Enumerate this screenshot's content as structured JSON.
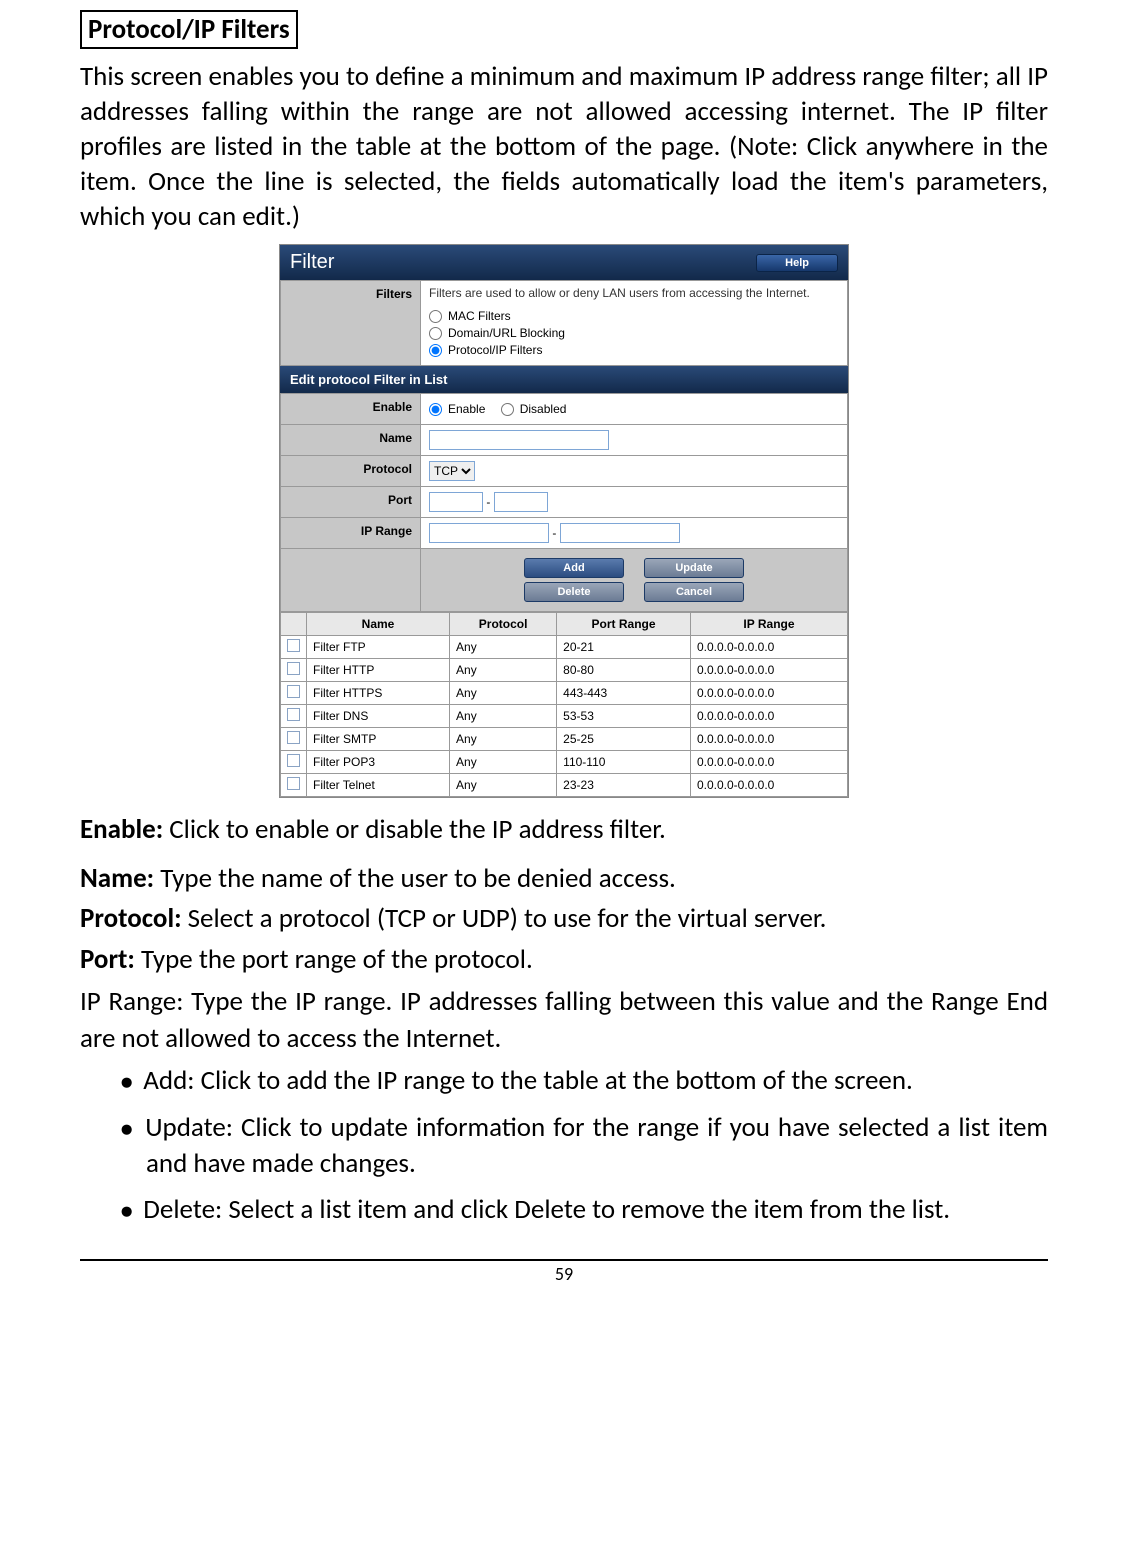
{
  "header": {
    "title": "Protocol/IP Filters",
    "intro": "This screen enables you to define a minimum and maximum IP address range filter; all IP addresses falling within the range are not allowed accessing internet. The IP filter profiles are listed in the table at the bottom of the page. (Note: Click anywhere in the item. Once the line is selected, the fields automatically load the item's parameters, which you can edit.)"
  },
  "panel": {
    "title": "Filter",
    "help_label": "Help",
    "filters_label": "Filters",
    "filters_desc": "Filters are used to allow or deny LAN users from accessing the Internet.",
    "filter_options": {
      "mac": "MAC Filters",
      "domain": "Domain/URL Blocking",
      "protocol": "Protocol/IP Filters"
    },
    "section_title": "Edit protocol Filter in List",
    "form": {
      "enable_label": "Enable",
      "enable_opt": "Enable",
      "disabled_opt": "Disabled",
      "name_label": "Name",
      "protocol_label": "Protocol",
      "protocol_value": "TCP",
      "port_label": "Port",
      "iprange_label": "IP Range"
    },
    "buttons": {
      "add": "Add",
      "update": "Update",
      "delete": "Delete",
      "cancel": "Cancel"
    },
    "table_headers": {
      "name": "Name",
      "protocol": "Protocol",
      "port_range": "Port Range",
      "ip_range": "IP Range"
    },
    "rows": [
      {
        "name": "Filter FTP",
        "protocol": "Any",
        "port_range": "20-21",
        "ip_range": "0.0.0.0-0.0.0.0"
      },
      {
        "name": "Filter HTTP",
        "protocol": "Any",
        "port_range": "80-80",
        "ip_range": "0.0.0.0-0.0.0.0"
      },
      {
        "name": "Filter HTTPS",
        "protocol": "Any",
        "port_range": "443-443",
        "ip_range": "0.0.0.0-0.0.0.0"
      },
      {
        "name": "Filter DNS",
        "protocol": "Any",
        "port_range": "53-53",
        "ip_range": "0.0.0.0-0.0.0.0"
      },
      {
        "name": "Filter SMTP",
        "protocol": "Any",
        "port_range": "25-25",
        "ip_range": "0.0.0.0-0.0.0.0"
      },
      {
        "name": "Filter POP3",
        "protocol": "Any",
        "port_range": "110-110",
        "ip_range": "0.0.0.0-0.0.0.0"
      },
      {
        "name": "Filter Telnet",
        "protocol": "Any",
        "port_range": "23-23",
        "ip_range": "0.0.0.0-0.0.0.0"
      }
    ]
  },
  "defs": {
    "enable": {
      "label": "Enable:",
      "text": " Click to enable or disable the IP address filter."
    },
    "name": {
      "label": "Name:",
      "text": " Type the name of the user to be denied access."
    },
    "protocol": {
      "label": "Protocol:",
      "text": " Select a protocol (TCP or UDP) to use for the virtual server."
    },
    "port": {
      "label": "Port:",
      "text": " Type the port range of the protocol."
    },
    "iprange": {
      "label": "IP Range:",
      "text": " Type the IP range. IP addresses falling between this value and the Range End are not allowed to access the Internet."
    }
  },
  "bullets": {
    "add": {
      "label": "Add:",
      "text": " Click to add the IP range to the table at the bottom of the screen."
    },
    "update": {
      "label": "Update:",
      "text": " Click to update information for the range if you have selected a list item and have made changes."
    },
    "delete": {
      "label": "Delete:",
      "text": " Select a list item and click Delete to remove the item from the list."
    }
  },
  "page_number": "59"
}
